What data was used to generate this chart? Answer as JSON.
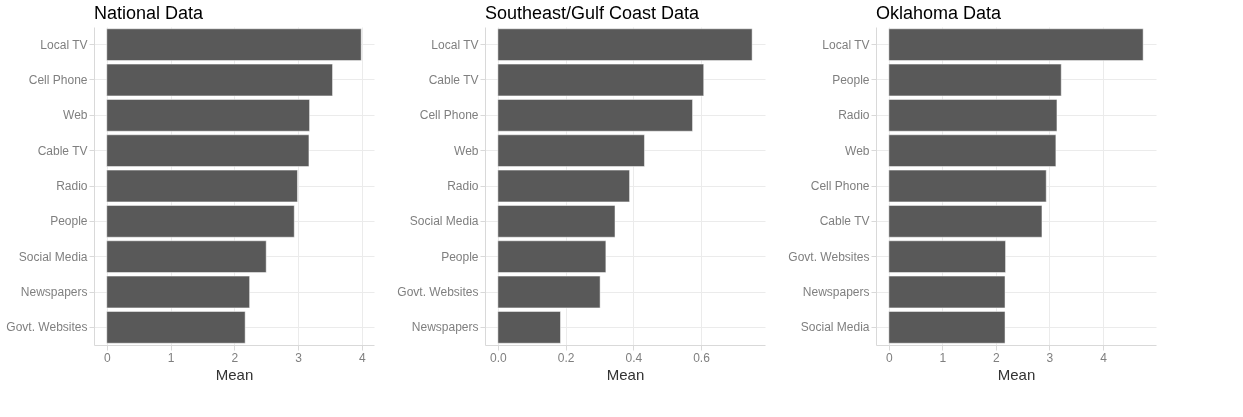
{
  "chart_data": [
    {
      "type": "bar",
      "orientation": "horizontal",
      "title": "National Data",
      "xlabel": "Mean",
      "grid": true,
      "categories": [
        "Local TV",
        "Cell Phone",
        "Web",
        "Cable TV",
        "Radio",
        "People",
        "Social Media",
        "Newspapers",
        "Govt. Websites"
      ],
      "series": [
        {
          "color": "#595959",
          "values": [
            3.99,
            3.54,
            3.18,
            3.17,
            2.99,
            2.94,
            2.5,
            2.24,
            2.17
          ]
        }
      ],
      "xlim": [
        -0.2,
        4.19
      ],
      "xticks": [
        0,
        1,
        2,
        3,
        4
      ]
    },
    {
      "type": "bar",
      "orientation": "horizontal",
      "title": "Southeast/Gulf Coast Data",
      "xlabel": "Mean",
      "grid": true,
      "categories": [
        "Local TV",
        "Cable TV",
        "Cell Phone",
        "Web",
        "Radio",
        "Social Media",
        "People",
        "Govt. Websites",
        "Newspapers"
      ],
      "series": [
        {
          "color": "#595959",
          "values": [
            0.751,
            0.608,
            0.575,
            0.433,
            0.389,
            0.346,
            0.319,
            0.302,
            0.185
          ]
        }
      ],
      "xlim": [
        -0.038,
        0.789
      ],
      "xticks": [
        {
          "value": 0,
          "label": "0.0"
        },
        0.2,
        0.4,
        0.6
      ]
    },
    {
      "type": "bar",
      "orientation": "horizontal",
      "title": "Oklahoma Data",
      "xlabel": "Mean",
      "grid": true,
      "categories": [
        "Local TV",
        "People",
        "Radio",
        "Web",
        "Cell Phone",
        "Cable TV",
        "Govt. Websites",
        "Newspapers",
        "Social Media"
      ],
      "series": [
        {
          "color": "#595959",
          "values": [
            4.75,
            3.22,
            3.14,
            3.12,
            2.94,
            2.86,
            2.18,
            2.17,
            2.17
          ]
        }
      ],
      "xlim": [
        -0.24,
        4.99
      ],
      "xticks": [
        0,
        1,
        2,
        3,
        4
      ]
    }
  ]
}
